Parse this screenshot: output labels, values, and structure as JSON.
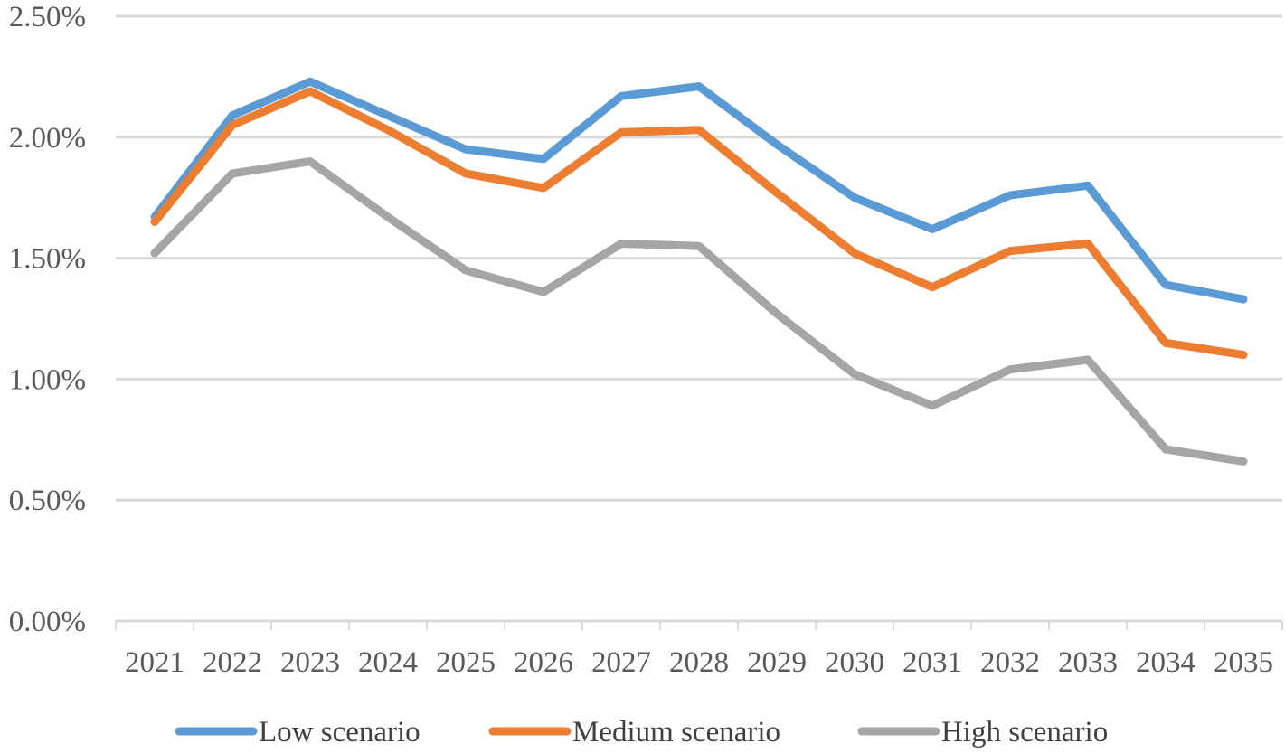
{
  "chart_data": {
    "type": "line",
    "title": "",
    "xlabel": "",
    "ylabel": "",
    "categories": [
      "2021",
      "2022",
      "2023",
      "2024",
      "2025",
      "2026",
      "2027",
      "2028",
      "2029",
      "2030",
      "2031",
      "2032",
      "2033",
      "2034",
      "2035"
    ],
    "ylim": [
      0,
      0.025
    ],
    "yticks": [
      0,
      0.005,
      0.01,
      0.015,
      0.02,
      0.025
    ],
    "ytick_labels": [
      "0.00%",
      "0.50%",
      "1.00%",
      "1.50%",
      "2.00%",
      "2.50%"
    ],
    "grid": true,
    "legend_position": "bottom",
    "series": [
      {
        "name": "Low scenario",
        "color": "#5b9bd5",
        "values": [
          0.0167,
          0.0209,
          0.0223,
          0.0209,
          0.0195,
          0.0191,
          0.0217,
          0.0221,
          0.0197,
          0.0175,
          0.0162,
          0.0176,
          0.018,
          0.0139,
          0.0133
        ]
      },
      {
        "name": "Medium scenario",
        "color": "#ed7d31",
        "values": [
          0.0165,
          0.0205,
          0.0219,
          0.0203,
          0.0185,
          0.0179,
          0.0202,
          0.0203,
          0.0177,
          0.0152,
          0.0138,
          0.0153,
          0.0156,
          0.0115,
          0.011
        ]
      },
      {
        "name": "High scenario",
        "color": "#a5a5a5",
        "values": [
          0.0152,
          0.0185,
          0.019,
          0.0167,
          0.0145,
          0.0136,
          0.0156,
          0.0155,
          0.0127,
          0.0102,
          0.0089,
          0.0104,
          0.0108,
          0.0071,
          0.0066
        ]
      }
    ]
  }
}
